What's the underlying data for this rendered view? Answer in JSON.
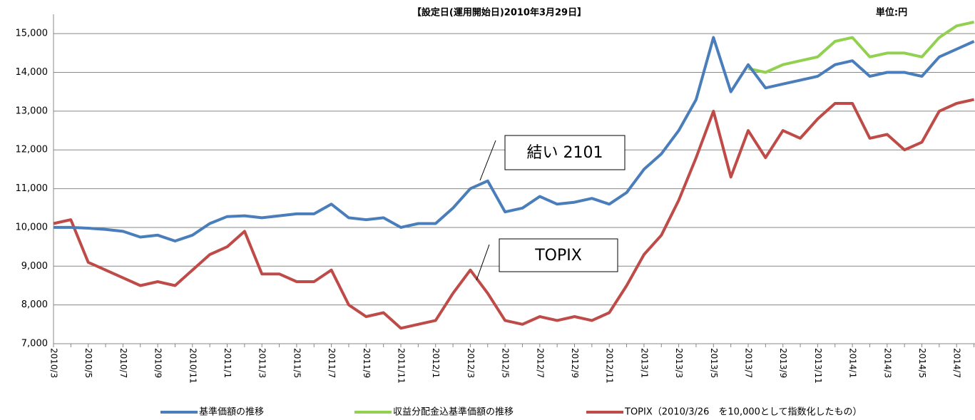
{
  "chart_data": {
    "type": "line",
    "title": "【設定日(運用開始日)2010年3月29日】",
    "unit_label": "単位:円",
    "annotations": [
      "結い 2101",
      "TOPIX"
    ],
    "categories": [
      "2010/3",
      null,
      "2010/5",
      null,
      "2010/7",
      null,
      "2010/9",
      null,
      "2010/11",
      null,
      "2011/1",
      null,
      "2011/3",
      null,
      "2011/5",
      null,
      "2011/7",
      null,
      "2011/9",
      null,
      "2011/11",
      null,
      "2012/1",
      null,
      "2012/3",
      null,
      "2012/5",
      null,
      "2012/7",
      null,
      "2012/9",
      null,
      "2012/11",
      null,
      "2013/1",
      null,
      "2013/3",
      null,
      "2013/5",
      null,
      "2013/7",
      null,
      "2013/9",
      null,
      "2013/11",
      null,
      "2014/1",
      null,
      "2014/3",
      null,
      "2014/5",
      null,
      "2014/7",
      null
    ],
    "series": [
      {
        "name": "基準価額の推移",
        "color": "#4a7ebb",
        "values": [
          10000,
          10000,
          9980,
          9950,
          9900,
          9750,
          9800,
          9650,
          9800,
          10100,
          10280,
          10300,
          10250,
          10300,
          10350,
          10350,
          10600,
          10250,
          10200,
          10250,
          10000,
          10100,
          10100,
          10500,
          11000,
          11200,
          10400,
          10500,
          10800,
          10600,
          10650,
          10750,
          10600,
          10900,
          11500,
          11900,
          12500,
          13300,
          14900,
          13500,
          14200,
          13600,
          13700,
          13800,
          13900,
          14200,
          14300,
          13900,
          14000,
          14000,
          13900,
          14400,
          14600,
          14800
        ]
      },
      {
        "name": "収益分配金込基準価額の推移",
        "color": "#92d050",
        "values": [
          null,
          null,
          null,
          null,
          null,
          null,
          null,
          null,
          null,
          null,
          null,
          null,
          null,
          null,
          null,
          null,
          null,
          null,
          null,
          null,
          null,
          null,
          null,
          null,
          null,
          null,
          null,
          null,
          null,
          null,
          null,
          null,
          null,
          null,
          null,
          null,
          null,
          null,
          null,
          null,
          14100,
          14000,
          14200,
          14300,
          14400,
          14800,
          14900,
          14400,
          14500,
          14500,
          14400,
          14900,
          15200,
          15300
        ]
      },
      {
        "name": "TOPIX（2010/3/26　を10,000として指数化したもの）",
        "color": "#be4b48",
        "values": [
          10100,
          10200,
          9100,
          8900,
          8700,
          8500,
          8600,
          8500,
          8900,
          9300,
          9500,
          9900,
          8800,
          8800,
          8600,
          8600,
          8900,
          8000,
          7700,
          7800,
          7400,
          7500,
          7600,
          8300,
          8900,
          8300,
          7600,
          7500,
          7700,
          7600,
          7700,
          7600,
          7800,
          8500,
          9300,
          9800,
          10700,
          11800,
          13000,
          11300,
          12500,
          11800,
          12500,
          12300,
          12800,
          13200,
          13200,
          12300,
          12400,
          12000,
          12200,
          13000,
          13200,
          13300
        ]
      }
    ],
    "ylim": [
      7000,
      15500
    ],
    "yticks": [
      {
        "value": 7000,
        "label": "7,000"
      },
      {
        "value": 8000,
        "label": "8,000"
      },
      {
        "value": 9000,
        "label": "9,000"
      },
      {
        "value": 10000,
        "label": "10,000"
      },
      {
        "value": 11000,
        "label": "11,000"
      },
      {
        "value": 12000,
        "label": "12,000"
      },
      {
        "value": 13000,
        "label": "13,000"
      },
      {
        "value": 14000,
        "label": "14,000"
      },
      {
        "value": 15000,
        "label": "15,000"
      }
    ],
    "grid": true
  }
}
